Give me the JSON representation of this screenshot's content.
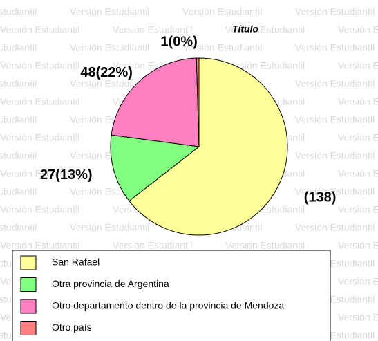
{
  "watermark": "Versión Estudiantil",
  "chart_data": {
    "type": "pie",
    "title": "Título",
    "categories": [
      "San Rafael",
      "Otra provincia de Argentina",
      "Otro departamento dentro de la provincia de Mendoza",
      "Otro país"
    ],
    "values": [
      138,
      27,
      48,
      1
    ],
    "value_labels": [
      "(138)",
      "27(13%)",
      "48(22%)",
      "1(0%)"
    ],
    "colors": [
      "#ffff99",
      "#80ff80",
      "#ff80c0",
      "#ff8080"
    ],
    "legend": "bottom"
  }
}
